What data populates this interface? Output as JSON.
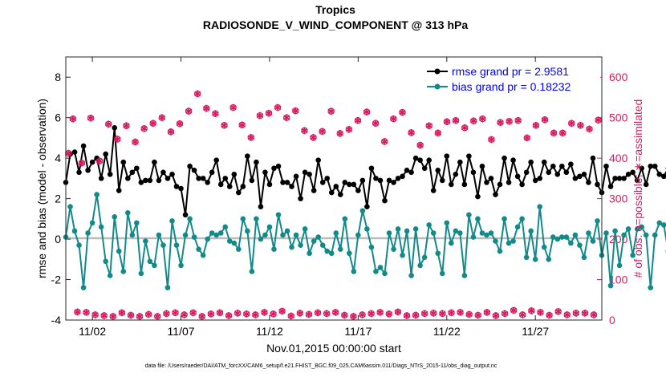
{
  "colors": {
    "rmse": "#000000",
    "bias": "#138a8a",
    "obs": "#d81b60",
    "legend_text": "#0000ff",
    "zero_line": "#bbbbbb"
  },
  "chart_data": {
    "type": "line",
    "title": "Tropics",
    "subtitle": "RADIOSONDE_V_WIND_COMPONENT @ 313 hPa",
    "xlabel": "Nov.01,2015 00:00:00 start",
    "ylabel": "rmse and bias (model - observation)",
    "y2label": "# of obs: o=possible; ∗=assimilated",
    "footer": "data file: /Users/raeder/DAI/ATM_forcXX/CAM6_setup/f.e21.FHIST_BGC.f09_025.CAM6assim.011/Diags_NTrS_2015-11/obs_diag_output.nc",
    "xlim": [
      0.5,
      30.75
    ],
    "ylim": [
      -4,
      9
    ],
    "y2lim": [
      0,
      650
    ],
    "xticks": [
      2,
      7,
      12,
      17,
      22,
      27
    ],
    "xtick_labels": [
      "11/02",
      "11/07",
      "11/12",
      "11/17",
      "11/22",
      "11/27"
    ],
    "yticks": [
      -4,
      -2,
      0,
      2,
      4,
      6,
      8
    ],
    "y2ticks": [
      0,
      100,
      200,
      300,
      400,
      500,
      600
    ],
    "legend": {
      "position": "top-right",
      "rmse_label": "rmse grand pr = 2.9581",
      "bias_label": "bias grand pr = 0.18232"
    },
    "x_start": 0.5,
    "x_step": 0.25,
    "series": [
      {
        "name": "rmse",
        "values": [
          2.8,
          4.2,
          4.3,
          3.3,
          4.6,
          3.4,
          3.8,
          4.0,
          3.0,
          4.2,
          3.2,
          5.5,
          2.4,
          3.8,
          3.0,
          3.3,
          3.5,
          2.8,
          2.9,
          2.9,
          3.8,
          2.9,
          3.3,
          3.0,
          3.2,
          2.6,
          2.5,
          1.2,
          3.6,
          3.4,
          3.0,
          3.0,
          2.8,
          3.3,
          3.9,
          2.7,
          3.0,
          2.6,
          3.2,
          2.3,
          2.6,
          4.1,
          2.9,
          3.8,
          1.6,
          3.3,
          2.7,
          3.5,
          3.6,
          2.8,
          2.8,
          2.6,
          3.1,
          2.0,
          3.3,
          3.2,
          2.4,
          3.9,
          2.8,
          3.0,
          2.3,
          2.6,
          2.2,
          2.8,
          2.7,
          2.7,
          2.4,
          2.9,
          1.6,
          3.5,
          3.0,
          2.9,
          1.9,
          2.9,
          2.8,
          3.0,
          3.1,
          3.4,
          3.3,
          4.0,
          3.9,
          3.5,
          3.9,
          2.4,
          3.4,
          2.9,
          4.1,
          2.7,
          3.2,
          3.8,
          2.7,
          4.1,
          3.3,
          2.1,
          3.6,
          2.8,
          3.0,
          2.2,
          2.7,
          4.0,
          2.8,
          3.9,
          3.1,
          2.7,
          3.3,
          3.8,
          2.9,
          3.0,
          3.8,
          3.3,
          3.6,
          3.2,
          3.6,
          3.3,
          3.7,
          3.0,
          3.1,
          3.2,
          2.8,
          4.0,
          2.7,
          2.3,
          3.6,
          2.6,
          3.0,
          3.0,
          3.0,
          3.2,
          3.3,
          2.9,
          3.5,
          2.7,
          3.6,
          3.6,
          3.2,
          3.1,
          3.5,
          4.2,
          3.0,
          3.1,
          3.0,
          3.6,
          2.9,
          2.8,
          3.5,
          3.3,
          3.9,
          3.0,
          3.4,
          3.2,
          3.3,
          2.6,
          2.9,
          3.1,
          3.7,
          3.5,
          2.4,
          2.2
        ],
        "marker": "circle"
      },
      {
        "name": "bias",
        "values": [
          0.1,
          1.6,
          0.4,
          -0.3,
          -2.4,
          0.3,
          0.8,
          2.2,
          0.6,
          -1.1,
          -1.8,
          1.1,
          -0.6,
          -1.6,
          1.3,
          0.2,
          0.8,
          -1.7,
          -0.1,
          -1.1,
          -1.3,
          0.2,
          -0.3,
          -2.4,
          0.9,
          -0.3,
          -1.3,
          0.2,
          1.0,
          0.1,
          -0.5,
          -0.8,
          0.0,
          0.3,
          0.2,
          0.3,
          0.6,
          -0.1,
          -0.2,
          -0.5,
          1.0,
          0.4,
          -1.6,
          1.0,
          0.0,
          0.2,
          0.6,
          -0.5,
          1.2,
          0.2,
          0.4,
          -0.4,
          0.2,
          -0.3,
          0.5,
          -0.7,
          -0.1,
          0.1,
          -0.3,
          -0.6,
          -0.7,
          0.3,
          -0.5,
          1.0,
          -0.7,
          -1.6,
          0.2,
          1.4,
          0.5,
          -0.4,
          -1.6,
          -1.4,
          -1.7,
          0.3,
          -0.5,
          0.5,
          -0.8,
          0.4,
          -1.8,
          0.5,
          -1.3,
          -0.9,
          0.7,
          0.3,
          -0.7,
          -1.7,
          0.8,
          -0.2,
          0.4,
          0.3,
          -1.8,
          1.2,
          0.1,
          1.0,
          0.3,
          0.2,
          0.3,
          -0.1,
          -0.6,
          1.0,
          -0.2,
          -0.1,
          0.6,
          1.0,
          -0.9,
          0.4,
          -1.0,
          1.6,
          -0.4,
          -1.0,
          0.1,
          0.0,
          0.1,
          0.1,
          -0.2,
          0.2,
          -0.3,
          -0.9,
          0.3,
          -0.1,
          0.9,
          -0.8,
          0.3,
          -2.3,
          0.4,
          -1.3,
          0.2,
          0.5,
          -0.8,
          0.5,
          0.6,
          0.2,
          -2.4,
          0.2,
          0.8,
          0.7,
          -0.6,
          0.4,
          0.5,
          0.7,
          0.0,
          -1.6,
          0.1,
          -0.6,
          1.1,
          -0.6,
          0.7,
          -0.1,
          -0.3,
          -1.2,
          1.3,
          1.8,
          0.0,
          2.2,
          0.5,
          -0.1,
          0.4,
          -1.2
        ],
        "marker": "circle"
      },
      {
        "name": "obs_possible",
        "values": [
          412,
          497,
          20,
          388,
          19,
          499,
          13,
          393,
          11,
          484,
          9,
          447,
          18,
          480,
          12,
          440,
          9,
          473,
          14,
          486,
          9,
          500,
          16,
          465,
          18,
          485,
          13,
          516,
          18,
          559,
          9,
          523,
          15,
          510,
          18,
          481,
          11,
          525,
          17,
          482,
          15,
          451,
          13,
          505,
          19,
          511,
          15,
          525,
          22,
          500,
          10,
          517,
          17,
          468,
          14,
          451,
          18,
          466,
          16,
          516,
          19,
          461,
          12,
          471,
          9,
          493,
          13,
          514,
          16,
          486,
          19,
          441,
          15,
          497,
          20,
          513,
          11,
          463,
          12,
          432,
          16,
          480,
          17,
          462,
          16,
          490,
          18,
          493,
          19,
          475,
          14,
          492,
          12,
          497,
          19,
          446,
          11,
          488,
          16,
          491,
          24,
          493,
          13,
          450,
          23,
          481,
          19,
          495,
          12,
          462,
          21,
          462,
          13,
          486,
          17,
          481,
          17,
          472,
          13,
          494
        ],
        "marker": "circle"
      },
      {
        "name": "obs_assimilated",
        "values": [
          412,
          497,
          20,
          388,
          19,
          499,
          13,
          393,
          11,
          484,
          9,
          447,
          18,
          480,
          12,
          440,
          9,
          473,
          14,
          486,
          9,
          500,
          16,
          465,
          18,
          485,
          13,
          516,
          18,
          559,
          9,
          523,
          15,
          510,
          18,
          481,
          11,
          525,
          17,
          482,
          15,
          451,
          13,
          505,
          19,
          511,
          15,
          525,
          22,
          500,
          10,
          517,
          17,
          468,
          14,
          451,
          18,
          466,
          16,
          516,
          19,
          461,
          12,
          471,
          9,
          493,
          13,
          514,
          16,
          486,
          19,
          441,
          15,
          497,
          20,
          513,
          11,
          463,
          12,
          432,
          16,
          480,
          17,
          462,
          16,
          490,
          18,
          493,
          19,
          475,
          14,
          492,
          12,
          497,
          19,
          446,
          11,
          488,
          16,
          491,
          24,
          493,
          13,
          450,
          23,
          481,
          19,
          495,
          12,
          462,
          21,
          462,
          13,
          486,
          17,
          481,
          17,
          472,
          13,
          494
        ],
        "marker": "asterisk"
      }
    ]
  }
}
